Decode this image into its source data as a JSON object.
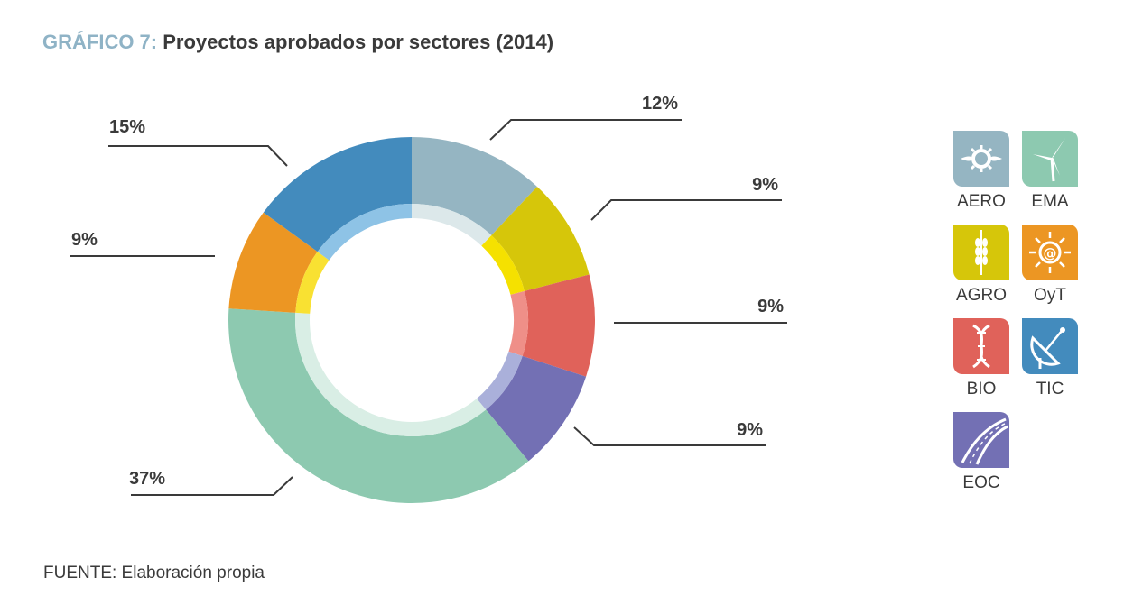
{
  "title": {
    "prefix": "GRÁFICO 7:",
    "main": "Proyectos aprobados por sectores (2014)"
  },
  "chart_data": {
    "type": "pie",
    "variant": "donut",
    "title": "Proyectos aprobados por sectores (2014)",
    "categories": [
      "AERO",
      "AGRO",
      "BIO",
      "EOC",
      "EMA",
      "OyT",
      "TIC"
    ],
    "values": [
      12,
      9,
      9,
      9,
      37,
      9,
      15
    ],
    "labels": [
      "12%",
      "9%",
      "9%",
      "9%",
      "37%",
      "9%",
      "15%"
    ],
    "colors": [
      "#95b5c2",
      "#d6c60a",
      "#e0625a",
      "#7370b4",
      "#8dc9b0",
      "#ec9623",
      "#438bbd"
    ],
    "inner_colors": [
      "#dce8ea",
      "#f5e100",
      "#ef8f88",
      "#aab0da",
      "#d9eee5",
      "#f9e132",
      "#8ec3e6"
    ],
    "legend_placement": "right"
  },
  "legend": [
    {
      "name": "AERO",
      "color": "#95b5c2",
      "icon": "gear-icon"
    },
    {
      "name": "EMA",
      "color": "#8dc9b0",
      "icon": "wind-turbine-icon"
    },
    {
      "name": "AGRO",
      "color": "#d6c60a",
      "icon": "wheat-icon"
    },
    {
      "name": "OyT",
      "color": "#ec9623",
      "icon": "sun-icon"
    },
    {
      "name": "BIO",
      "color": "#e0625a",
      "icon": "dna-icon"
    },
    {
      "name": "TIC",
      "color": "#438bbd",
      "icon": "satellite-dish-icon"
    },
    {
      "name": "EOC",
      "color": "#7370b4",
      "icon": "road-icon"
    }
  ],
  "source": "FUENTE: Elaboración propia"
}
